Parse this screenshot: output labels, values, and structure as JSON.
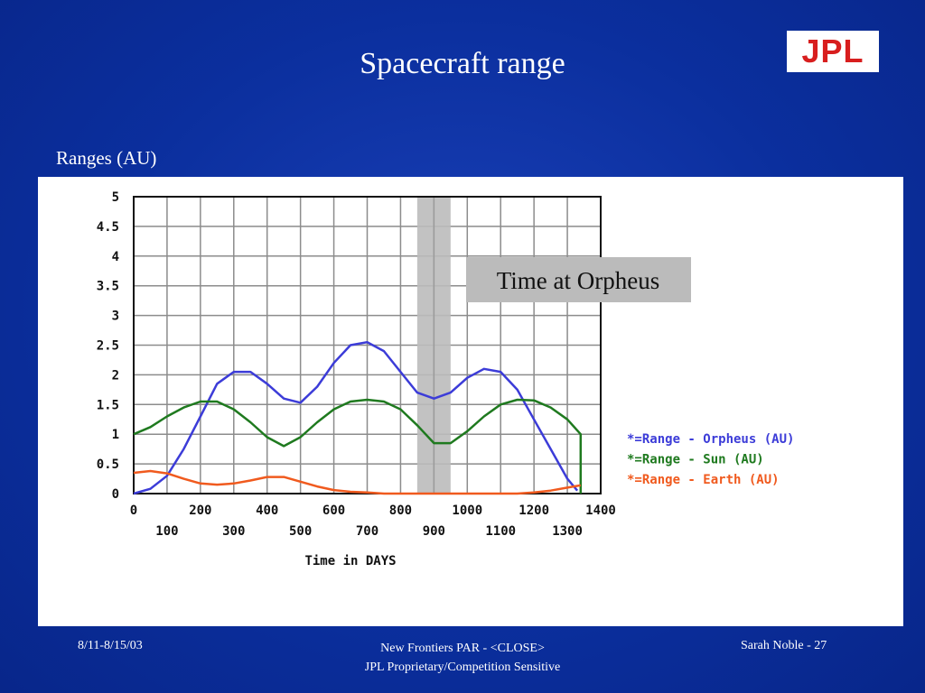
{
  "slide": {
    "title": "Spacecraft range",
    "logo_text": "JPL",
    "section_label": "Ranges (AU)"
  },
  "footer": {
    "date": "8/11-8/15/03",
    "center_line1": "New Frontiers PAR -  <CLOSE>",
    "center_line2": "JPL Proprietary/Competition Sensitive",
    "right": "Sarah Noble - 27"
  },
  "chart_data": {
    "type": "line",
    "xlabel": "Time in DAYS",
    "ylabel": "",
    "xlim": [
      0,
      1400
    ],
    "ylim": [
      0,
      5
    ],
    "x_ticks_row1": [
      "0",
      "200",
      "400",
      "600",
      "800",
      "1000",
      "1200",
      "1400"
    ],
    "x_ticks_row2": [
      "100",
      "300",
      "500",
      "700",
      "900",
      "1100",
      "1300"
    ],
    "y_ticks": [
      "0",
      "0.5",
      "1",
      "1.5",
      "2",
      "2.5",
      "3",
      "3.5",
      "4",
      "4.5",
      "5"
    ],
    "grid": true,
    "legend_position": "right",
    "shaded_region": {
      "x_range": [
        850,
        950
      ],
      "label": "Time at Orpheus",
      "color": "#bbbbbb"
    },
    "series": [
      {
        "name": "*=Range - Orpheus (AU)",
        "color": "#3c3cd8",
        "x": [
          0,
          50,
          100,
          150,
          200,
          250,
          300,
          350,
          400,
          450,
          500,
          550,
          600,
          650,
          700,
          750,
          800,
          850,
          900,
          950,
          1000,
          1050,
          1100,
          1150,
          1200,
          1250,
          1300,
          1330
        ],
        "y": [
          0,
          0.08,
          0.3,
          0.75,
          1.3,
          1.85,
          2.05,
          2.05,
          1.85,
          1.6,
          1.53,
          1.8,
          2.2,
          2.5,
          2.55,
          2.4,
          2.05,
          1.7,
          1.6,
          1.7,
          1.95,
          2.1,
          2.05,
          1.75,
          1.25,
          0.75,
          0.25,
          0.05
        ]
      },
      {
        "name": "*=Range - Sun (AU)",
        "color": "#1f7a1f",
        "x": [
          0,
          50,
          100,
          150,
          200,
          250,
          300,
          350,
          400,
          450,
          500,
          550,
          600,
          650,
          700,
          750,
          800,
          850,
          900,
          950,
          1000,
          1050,
          1100,
          1150,
          1200,
          1250,
          1300,
          1340,
          1340
        ],
        "y": [
          1.0,
          1.12,
          1.3,
          1.45,
          1.55,
          1.55,
          1.42,
          1.2,
          0.95,
          0.8,
          0.95,
          1.2,
          1.42,
          1.55,
          1.58,
          1.55,
          1.42,
          1.15,
          0.85,
          0.85,
          1.05,
          1.3,
          1.5,
          1.58,
          1.57,
          1.45,
          1.25,
          1.0,
          0
        ]
      },
      {
        "name": "*=Range - Earth (AU)",
        "color": "#f05a1e",
        "x": [
          0,
          50,
          100,
          150,
          200,
          250,
          300,
          350,
          400,
          450,
          500,
          550,
          600,
          650,
          700,
          750,
          800,
          850,
          900,
          950,
          1000,
          1050,
          1100,
          1150,
          1200,
          1250,
          1300,
          1340
        ],
        "y": [
          0.35,
          0.38,
          0.34,
          0.25,
          0.17,
          0.15,
          0.17,
          0.22,
          0.28,
          0.28,
          0.2,
          0.12,
          0.06,
          0.03,
          0.02,
          0.0,
          0.0,
          0.0,
          0.0,
          0.0,
          0.0,
          0.0,
          0.0,
          0.0,
          0.02,
          0.05,
          0.1,
          0.14
        ]
      }
    ]
  }
}
